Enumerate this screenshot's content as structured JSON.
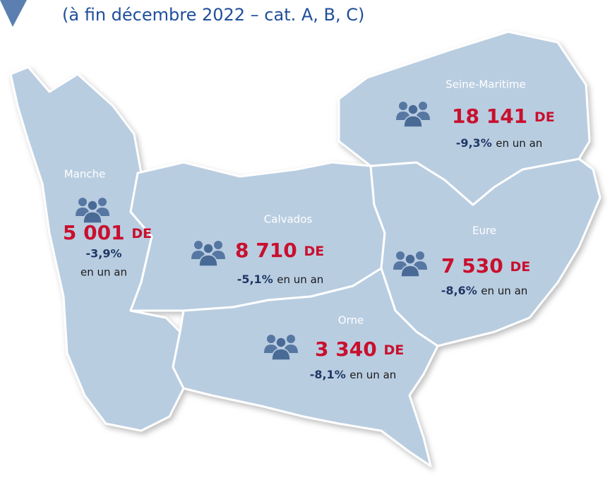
{
  "subtitle": "(à fin décembre 2022 – cat. A, B, C)",
  "regions": [
    {
      "name": "Seine-Maritime",
      "value": "18 141",
      "unit": "DE",
      "change": "-9,3%",
      "suffix": "en un an"
    },
    {
      "name": "Manche",
      "value": "5 001",
      "unit": "DE",
      "change": "-3,9%",
      "suffix": "en un an"
    },
    {
      "name": "Calvados",
      "value": "8 710",
      "unit": "DE",
      "change": "-5,1%",
      "suffix": "en un an"
    },
    {
      "name": "Eure",
      "value": "7 530",
      "unit": "DE",
      "change": "-8,6%",
      "suffix": "en un an"
    },
    {
      "name": "Orne",
      "value": "3 340",
      "unit": "DE",
      "change": "-8,1%",
      "suffix": "en un an"
    }
  ]
}
